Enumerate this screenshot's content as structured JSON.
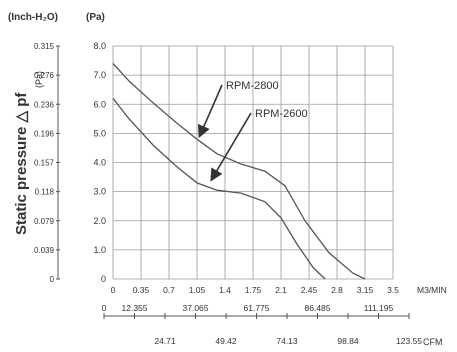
{
  "chart_data": {
    "type": "line",
    "title": "",
    "ylabel": "Static pressure △ pf",
    "ylabel_unit": "(Pa)",
    "y_unit_inch": "(Inch-H₂O)",
    "y_unit_pa": "(Pa)",
    "x_unit_m3": "M3/MIN",
    "x_unit_cfm": "CFM",
    "xlim": [
      0,
      3.5
    ],
    "ylim": [
      0,
      8
    ],
    "grid": true,
    "pa_ticks": [
      "0",
      "1.0",
      "2.0",
      "3.0",
      "4.0",
      "5.0",
      "6.0",
      "7.0",
      "8.0"
    ],
    "inch_ticks": [
      "0",
      "0.039",
      "0.079",
      "0.118",
      "0.157",
      "0.196",
      "0.236",
      "0.276",
      "0.315"
    ],
    "m3_ticks": [
      "0",
      "0.35",
      "0.7",
      "1.05",
      "1.4",
      "1.75",
      "2.1",
      "2.45",
      "2.8",
      "3.15",
      "3.5"
    ],
    "cfm_top_ticks": [
      "0",
      "12.355",
      "37.065",
      "61.775",
      "86.485",
      "111.195"
    ],
    "cfm_bottom_ticks": [
      "24.71",
      "49.42",
      "74.13",
      "98.84",
      "123.55"
    ],
    "series": [
      {
        "name": "RPM-2800",
        "color": "#555555",
        "points": [
          [
            0,
            7.4
          ],
          [
            0.2,
            6.8
          ],
          [
            0.5,
            6.05
          ],
          [
            0.8,
            5.35
          ],
          [
            1.05,
            4.8
          ],
          [
            1.3,
            4.3
          ],
          [
            1.6,
            3.95
          ],
          [
            1.9,
            3.7
          ],
          [
            2.15,
            3.2
          ],
          [
            2.4,
            2.0
          ],
          [
            2.7,
            0.9
          ],
          [
            3.0,
            0.2
          ],
          [
            3.15,
            0
          ]
        ]
      },
      {
        "name": "RPM-2600",
        "color": "#555555",
        "points": [
          [
            0,
            6.2
          ],
          [
            0.2,
            5.5
          ],
          [
            0.5,
            4.6
          ],
          [
            0.8,
            3.85
          ],
          [
            1.05,
            3.3
          ],
          [
            1.3,
            3.05
          ],
          [
            1.6,
            2.95
          ],
          [
            1.9,
            2.65
          ],
          [
            2.1,
            2.1
          ],
          [
            2.3,
            1.2
          ],
          [
            2.5,
            0.4
          ],
          [
            2.65,
            0
          ]
        ]
      }
    ],
    "annotations": [
      {
        "text": "RPM-2800",
        "series": 0,
        "x": 1.05,
        "y": 4.8
      },
      {
        "text": "RPM-2600",
        "series": 1,
        "x": 1.2,
        "y": 3.3
      }
    ]
  }
}
